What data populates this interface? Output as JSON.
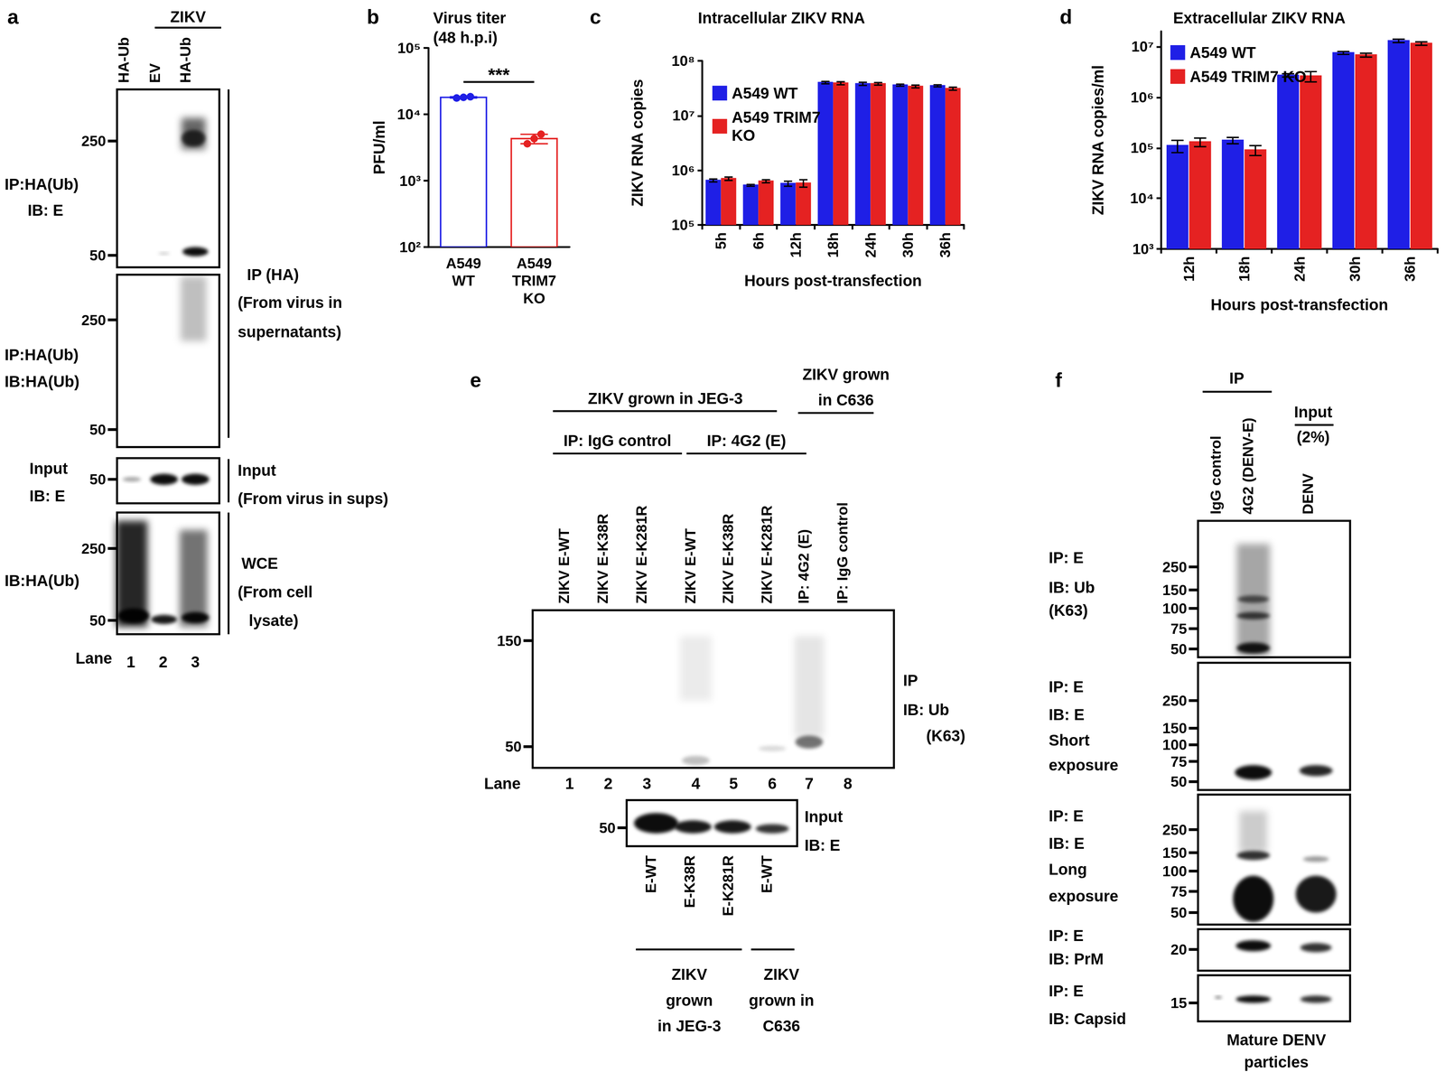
{
  "chart_data": [
    {
      "panel_label": "b",
      "type": "bar",
      "title": "Virus titer\n(48 h.p.i)",
      "y_label": "PFU/ml",
      "categories": [
        "A549\nWT",
        "A549\nTRIM7\nKO"
      ],
      "values": [
        18000,
        4300
      ],
      "errors": [
        400,
        700
      ],
      "points": [
        [
          17600,
          18000,
          18400
        ],
        [
          3600,
          4300,
          5000
        ]
      ],
      "colors": [
        "#1f1fe6",
        "#e52222"
      ],
      "log": "y",
      "ylim": [
        100,
        100000
      ],
      "yticks": [
        {
          "value": 100,
          "label": "10²"
        },
        {
          "value": 1000,
          "label": "10³"
        },
        {
          "value": 10000,
          "label": "10⁴"
        },
        {
          "value": 100000,
          "label": "10⁵"
        }
      ],
      "grid": false,
      "annotations": [
        {
          "text": "***",
          "from": "A549\nWT",
          "to": "A549\nTRIM7\nKO"
        }
      ]
    },
    {
      "panel_label": "c",
      "type": "bar",
      "title": "Intracellular ZIKV RNA",
      "y_label": "ZIKV RNA copies",
      "x_label": "Hours post-transfection",
      "categories": [
        "5h",
        "6h",
        "12h",
        "18h",
        "24h",
        "30h",
        "36h"
      ],
      "series": [
        {
          "name": "A549 WT",
          "color": "#1f1fe6",
          "values": [
            650000,
            530000,
            570000,
            40000000,
            38000000,
            36000000,
            35000000
          ],
          "errors": [
            40000,
            20000,
            60000,
            2000000,
            2500000,
            1500000,
            1500000
          ]
        },
        {
          "name": "A549 TRIM7\nKO",
          "color": "#e52222",
          "values": [
            700000,
            630000,
            580000,
            39000000,
            38000000,
            34000000,
            31000000
          ],
          "errors": [
            50000,
            40000,
            90000,
            2500000,
            2000000,
            2000000,
            2000000
          ]
        }
      ],
      "log": "y",
      "ylim": [
        100000,
        100000000
      ],
      "yticks": [
        {
          "value": 100000,
          "label": "10⁵"
        },
        {
          "value": 1000000,
          "label": "10⁶"
        },
        {
          "value": 10000000,
          "label": "10⁷"
        },
        {
          "value": 100000000,
          "label": "10⁸"
        }
      ],
      "legend": "upper left",
      "grid": false
    },
    {
      "panel_label": "d",
      "type": "bar",
      "title": "Extracellular ZIKV RNA",
      "y_label": "ZIKV RNA copies/ml",
      "x_label": "Hours post-transfection",
      "categories": [
        "12h",
        "18h",
        "24h",
        "30h",
        "36h"
      ],
      "series": [
        {
          "name": "A549 WT",
          "color": "#1f1fe6",
          "values": [
            110000,
            140000,
            2700000,
            7500000,
            13000000
          ],
          "errors": [
            30000,
            20000,
            200000,
            500000,
            1000000
          ]
        },
        {
          "name": "A549 TRIM7 KO",
          "color": "#e52222",
          "values": [
            130000,
            90000,
            2600000,
            6800000,
            11500000
          ],
          "errors": [
            25000,
            20000,
            600000,
            600000,
            900000
          ]
        }
      ],
      "log": "y",
      "ylim": [
        1000,
        20000000
      ],
      "yticks": [
        {
          "value": 1000,
          "label": "10³"
        },
        {
          "value": 10000,
          "label": "10⁴"
        },
        {
          "value": 100000,
          "label": "10⁵"
        },
        {
          "value": 1000000,
          "label": "10⁶"
        },
        {
          "value": 10000000,
          "label": "10⁷"
        }
      ],
      "legend": "upper left",
      "grid": false
    }
  ],
  "blots": {
    "a": {
      "label": "a",
      "header": "ZIKV",
      "lanes": [
        "HA-Ub",
        "EV",
        "HA-Ub"
      ],
      "boxes": [
        {
          "left": [
            "IP:HA(Ub)",
            "IB: E"
          ],
          "markers": [
            250,
            50
          ]
        },
        {
          "left": [
            "IP:HA(Ub)",
            "IB:HA(Ub)"
          ],
          "markers": [
            250,
            50
          ]
        },
        {
          "left": [
            "Input",
            "IB: E"
          ],
          "markers": [
            50
          ]
        },
        {
          "left": [
            "IB:HA(Ub)"
          ],
          "markers": [
            250,
            50
          ]
        }
      ],
      "brackets": [
        [
          "IP (HA)",
          "(From virus in",
          "supernatants)"
        ],
        [
          "Input",
          "(From virus in sups)"
        ],
        [
          "WCE",
          "(From cell",
          "lysate)"
        ]
      ],
      "lane_title": "Lane",
      "lane_numbers": [
        1,
        2,
        3
      ]
    },
    "e": {
      "label": "e",
      "groups": [
        [
          "ZIKV grown in JEG-3"
        ],
        [
          "ZIKV grown",
          "in C636"
        ]
      ],
      "subgroups": [
        "IP: IgG control",
        "IP: 4G2 (E)"
      ],
      "lanes": [
        "ZIKV E-WT",
        "ZIKV E-K38R",
        "ZIKV E-K281R",
        "ZIKV E-WT",
        "ZIKV E-K38R",
        "ZIKV E-K281R",
        "IP: 4G2 (E)",
        "IP: IgG control"
      ],
      "markers": [
        150,
        50
      ],
      "right": [
        "IP",
        "IB: Ub",
        "(K63)"
      ],
      "lane_title": "Lane",
      "lane_numbers": [
        1,
        2,
        3,
        4,
        5,
        6,
        7,
        8
      ],
      "input": {
        "markers": [
          50
        ],
        "right": [
          "Input",
          "IB: E"
        ],
        "lanes": [
          "E-WT",
          "E-K38R",
          "E-K281R",
          "E-WT"
        ],
        "groups": [
          [
            "ZIKV",
            "grown",
            "in JEG-3"
          ],
          [
            "ZIKV",
            "grown in",
            "C636"
          ]
        ]
      }
    },
    "f": {
      "label": "f",
      "header": "IP",
      "lanes": [
        "IgG control",
        "4G2 (DENV-E)",
        "DENV"
      ],
      "input_header": [
        "Input",
        "(2%)"
      ],
      "boxes": [
        {
          "left": [
            "IP: E",
            "IB: Ub",
            "(K63)"
          ],
          "markers": [
            250,
            150,
            100,
            75,
            50
          ]
        },
        {
          "left": [
            "IP: E",
            "IB: E",
            "Short",
            "exposure"
          ],
          "markers": [
            250,
            150,
            100,
            75,
            50
          ]
        },
        {
          "left": [
            "IP: E",
            "IB: E",
            "Long",
            "exposure"
          ],
          "markers": [
            250,
            150,
            100,
            75,
            50
          ]
        },
        {
          "left": [
            "IP: E",
            "IB: PrM"
          ],
          "markers": [
            20
          ]
        },
        {
          "left": [
            "IP: E",
            "IB: Capsid"
          ],
          "markers": [
            15
          ]
        }
      ],
      "footer": [
        "Mature DENV",
        "particles"
      ]
    }
  }
}
